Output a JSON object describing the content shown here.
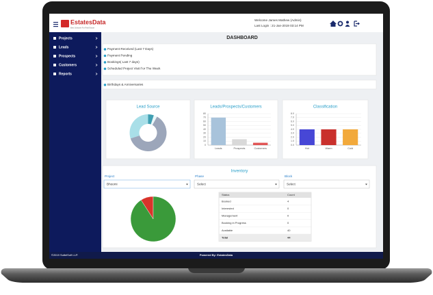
{
  "header": {
    "logo": "EstatesData",
    "tagline": "Best Software For Real Estate",
    "welcome": "Welcome James Mathew (Admin)",
    "last_login": "Last Login : 21-Jan-2019 03:14 PM"
  },
  "sidebar": {
    "items": [
      "Projects",
      "Leads",
      "Prospects",
      "Customers",
      "Reports"
    ]
  },
  "page_title": "DASHBOARD",
  "notices": {
    "items": [
      "Payment Received (Last 7 Days)",
      "Payment Pending",
      "Bookings( Last 7 days)",
      "Scheduled Project Visit For The Week"
    ]
  },
  "birthdays": "Birthdays & Anniversaries",
  "chart_data": [
    {
      "type": "donut",
      "title": "Lead Source",
      "values": [
        30,
        62,
        3,
        5
      ],
      "colors": [
        "#a9dfe8",
        "#9ca6ba",
        "#e9f6f8",
        "#3f9fb2"
      ]
    },
    {
      "type": "bar",
      "title": "Leads/Prospects/Customers",
      "categories": [
        "Leads",
        "Prospects",
        "Customers"
      ],
      "values": [
        70,
        15,
        6
      ],
      "colors": [
        "#a8c3db",
        "#d9d9d9",
        "#e05555"
      ],
      "ylim": [
        0,
        80
      ],
      "yticks": [
        0,
        10,
        20,
        30,
        40,
        50,
        60,
        70,
        80
      ],
      "grid": true
    },
    {
      "type": "bar",
      "title": "Classification",
      "categories": [
        "Hot",
        "Warm",
        "Cold"
      ],
      "values": [
        4,
        4,
        4
      ],
      "colors": [
        "#4747d6",
        "#c9302c",
        "#f2a93b"
      ],
      "ylim": [
        0,
        8
      ],
      "yticks": [
        {
          "value": 0,
          "label": "0.0"
        },
        {
          "value": 1,
          "label": "1.0"
        },
        {
          "value": 2,
          "label": "2.0"
        },
        {
          "value": 3,
          "label": "3.0"
        },
        {
          "value": 4,
          "label": "4.0"
        },
        {
          "value": 5,
          "label": "5.0"
        },
        {
          "value": 6,
          "label": "6.0"
        },
        {
          "value": 7,
          "label": "7.0"
        },
        {
          "value": 8,
          "label": "8.0"
        }
      ],
      "grid": true
    }
  ],
  "inventory": {
    "title": "Inventory",
    "filters": [
      {
        "label": "Project",
        "selected": "Bhoomi"
      },
      {
        "label": "Phase",
        "selected": "Select"
      },
      {
        "label": "Block",
        "selected": "Select"
      }
    ],
    "table": {
      "columns": [
        "Status",
        "Count"
      ],
      "rows": [
        [
          "Booked",
          4
        ],
        [
          "Interested",
          0
        ],
        [
          "Management",
          0
        ],
        [
          "Booking in Progress",
          0
        ],
        [
          "Available",
          40
        ]
      ],
      "footer": [
        "Total",
        44
      ]
    },
    "pie_colors": [
      "#d9342b",
      "#9e9e9e",
      "#9e9e9e",
      "#9e9e9e",
      "#3a9a3a"
    ]
  },
  "footer": {
    "copyright": "©2019 SuttelSoft LLP.",
    "powered_by": "Powered By: EstatesData"
  }
}
